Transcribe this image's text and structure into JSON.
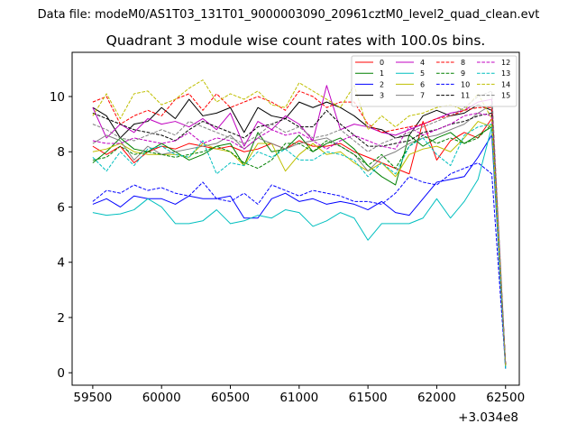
{
  "chart_data": {
    "type": "line",
    "suptitle": "Data file: modeM0/AS1T03_131T01_9000003090_20961cztM0_level2_quad_clean.evt",
    "title": "Quadrant 3 module wise count rates with 100.0s bins.",
    "xlabel": "",
    "ylabel": "",
    "x_offset_label": "+3.034e8",
    "xlim": [
      59350,
      62600
    ],
    "ylim": [
      -0.45,
      11.6
    ],
    "x_ticks": [
      59500,
      60000,
      60500,
      61000,
      61500,
      62000,
      62500
    ],
    "y_ticks": [
      0,
      2,
      4,
      6,
      8,
      10
    ],
    "x": [
      59500,
      59600,
      59700,
      59800,
      59900,
      60000,
      60100,
      60200,
      60300,
      60400,
      60500,
      60600,
      60700,
      60800,
      60900,
      61000,
      61100,
      61200,
      61300,
      61400,
      61500,
      61600,
      61700,
      61800,
      61900,
      62000,
      62100,
      62200,
      62300,
      62400,
      62500
    ],
    "legend_loc": "upper right",
    "series": [
      {
        "name": "0",
        "color": "#ff0000",
        "dash": "solid",
        "values": [
          8.2,
          7.9,
          8.2,
          7.6,
          8.0,
          8.2,
          8.1,
          8.3,
          8.2,
          8.1,
          8.2,
          8.0,
          8.1,
          8.3,
          8.1,
          8.4,
          8.2,
          8.2,
          8.3,
          8.0,
          7.8,
          7.6,
          7.4,
          7.2,
          9.1,
          7.7,
          8.4,
          8.7,
          8.5,
          9.2,
          0.3
        ]
      },
      {
        "name": "1",
        "color": "#008000",
        "dash": "solid",
        "values": [
          7.6,
          8.0,
          8.5,
          8.1,
          8.0,
          8.3,
          8.0,
          7.7,
          7.9,
          8.2,
          8.3,
          7.5,
          8.7,
          8.0,
          8.1,
          8.6,
          8.0,
          8.3,
          8.5,
          8.1,
          7.5,
          7.1,
          6.8,
          8.6,
          8.2,
          8.5,
          8.7,
          8.3,
          8.6,
          8.9,
          0.25
        ]
      },
      {
        "name": "2",
        "color": "#0000ff",
        "dash": "solid",
        "values": [
          6.1,
          6.3,
          6.0,
          6.4,
          6.3,
          6.3,
          6.1,
          6.4,
          6.3,
          6.3,
          6.4,
          5.6,
          5.6,
          6.3,
          6.5,
          6.2,
          6.3,
          6.1,
          6.2,
          6.1,
          5.9,
          6.2,
          5.8,
          5.7,
          6.3,
          6.9,
          7.0,
          7.1,
          7.8,
          8.6,
          0.15
        ]
      },
      {
        "name": "3",
        "color": "#000000",
        "dash": "solid",
        "values": [
          9.6,
          9.3,
          8.5,
          9.0,
          9.1,
          9.6,
          9.2,
          9.9,
          9.3,
          9.4,
          9.6,
          8.7,
          9.6,
          9.3,
          9.2,
          9.8,
          9.6,
          9.8,
          9.6,
          9.3,
          8.9,
          8.8,
          8.5,
          8.6,
          9.3,
          9.5,
          9.3,
          9.4,
          9.7,
          9.5,
          0.3
        ]
      },
      {
        "name": "4",
        "color": "#c000c0",
        "dash": "solid",
        "values": [
          9.6,
          8.5,
          9.0,
          8.7,
          9.2,
          9.0,
          9.1,
          8.9,
          9.2,
          8.8,
          9.4,
          8.2,
          9.1,
          8.8,
          9.3,
          9.0,
          8.4,
          10.4,
          8.8,
          9.0,
          8.9,
          8.7,
          8.6,
          8.8,
          9.0,
          9.2,
          9.4,
          9.5,
          9.8,
          9.9,
          0.3
        ]
      },
      {
        "name": "5",
        "color": "#00bfbf",
        "dash": "solid",
        "values": [
          5.8,
          5.7,
          5.75,
          5.9,
          6.3,
          6.0,
          5.4,
          5.4,
          5.5,
          5.9,
          5.4,
          5.5,
          5.7,
          5.6,
          5.9,
          5.8,
          5.3,
          5.5,
          5.8,
          5.6,
          4.8,
          5.4,
          5.4,
          5.4,
          5.6,
          6.3,
          5.6,
          6.2,
          7.0,
          8.9,
          0.15
        ]
      },
      {
        "name": "6",
        "color": "#bfbf00",
        "dash": "solid",
        "values": [
          8.0,
          8.1,
          8.3,
          8.0,
          7.9,
          7.9,
          7.9,
          7.8,
          8.3,
          8.1,
          8.0,
          7.5,
          8.3,
          8.3,
          7.3,
          7.9,
          8.3,
          7.9,
          8.0,
          7.6,
          7.3,
          7.6,
          7.1,
          7.9,
          8.1,
          8.2,
          8.0,
          8.5,
          9.1,
          8.9,
          0.25
        ]
      },
      {
        "name": "7",
        "color": "#808080",
        "dash": "solid",
        "values": [
          8.3,
          8.6,
          8.4,
          7.7,
          8.2,
          7.9,
          8.0,
          8.1,
          8.2,
          8.3,
          8.6,
          8.1,
          8.5,
          8.3,
          8.1,
          8.3,
          8.4,
          8.5,
          8.2,
          7.9,
          7.3,
          7.8,
          8.0,
          8.3,
          8.5,
          8.6,
          8.8,
          9.0,
          9.4,
          9.7,
          0.3
        ]
      },
      {
        "name": "8",
        "color": "#ff0000",
        "dash": "dashed",
        "values": [
          9.8,
          10.0,
          9.0,
          9.3,
          9.5,
          9.3,
          9.9,
          10.1,
          9.5,
          10.1,
          9.6,
          9.8,
          10.0,
          9.8,
          9.5,
          10.2,
          10.0,
          9.6,
          9.8,
          9.8,
          9.0,
          8.7,
          8.8,
          8.9,
          9.0,
          9.2,
          9.3,
          9.5,
          9.6,
          9.6,
          0.3
        ]
      },
      {
        "name": "9",
        "color": "#008000",
        "dash": "dashed",
        "values": [
          7.7,
          7.8,
          8.2,
          7.9,
          8.0,
          7.9,
          7.8,
          7.9,
          8.0,
          8.2,
          8.0,
          7.6,
          7.4,
          7.7,
          8.3,
          8.3,
          8.0,
          8.4,
          8.2,
          7.9,
          7.5,
          7.9,
          7.4,
          8.2,
          8.6,
          8.3,
          8.5,
          8.3,
          8.5,
          9.0,
          0.25
        ]
      },
      {
        "name": "10",
        "color": "#0000ff",
        "dash": "dashed",
        "values": [
          6.2,
          6.6,
          6.5,
          6.8,
          6.6,
          6.7,
          6.5,
          6.4,
          6.9,
          6.3,
          6.2,
          6.5,
          6.1,
          6.8,
          6.6,
          6.4,
          6.6,
          6.5,
          6.4,
          6.2,
          6.2,
          6.1,
          6.5,
          7.1,
          6.9,
          6.8,
          7.2,
          7.4,
          7.6,
          7.2,
          0.2
        ]
      },
      {
        "name": "11",
        "color": "#000000",
        "dash": "dashed",
        "values": [
          9.4,
          9.2,
          9.0,
          8.8,
          8.7,
          8.6,
          8.4,
          8.8,
          9.1,
          8.9,
          8.7,
          8.5,
          8.9,
          9.0,
          9.2,
          8.9,
          8.9,
          9.5,
          9.0,
          8.6,
          8.2,
          8.2,
          8.3,
          8.4,
          8.7,
          8.8,
          9.0,
          9.1,
          9.3,
          9.4,
          0.3
        ]
      },
      {
        "name": "12",
        "color": "#c000c0",
        "dash": "dashed",
        "values": [
          8.4,
          8.3,
          8.3,
          8.5,
          8.4,
          8.3,
          8.4,
          8.7,
          8.3,
          8.5,
          8.4,
          8.1,
          8.5,
          8.8,
          8.6,
          8.7,
          8.4,
          8.1,
          8.4,
          8.6,
          8.4,
          8.2,
          8.1,
          8.9,
          8.6,
          8.8,
          9.0,
          9.3,
          9.4,
          9.3,
          0.3
        ]
      },
      {
        "name": "13",
        "color": "#00bfbf",
        "dash": "dashed",
        "values": [
          7.8,
          7.3,
          8.0,
          7.5,
          8.1,
          8.2,
          7.9,
          7.8,
          8.4,
          7.2,
          7.6,
          7.5,
          8.0,
          7.8,
          8.1,
          7.7,
          7.7,
          8.0,
          7.9,
          7.7,
          7.1,
          7.6,
          7.2,
          8.2,
          8.5,
          7.9,
          7.5,
          8.6,
          8.9,
          9.0,
          0.2
        ]
      },
      {
        "name": "14",
        "color": "#bfbf00",
        "dash": "dashed",
        "values": [
          9.3,
          10.1,
          9.2,
          10.1,
          10.2,
          9.7,
          9.9,
          10.3,
          10.6,
          9.8,
          10.1,
          9.9,
          10.2,
          9.7,
          9.6,
          10.5,
          10.2,
          9.9,
          9.6,
          10.4,
          8.8,
          9.3,
          8.9,
          9.3,
          9.4,
          9.6,
          9.7,
          9.5,
          10.1,
          9.2,
          0.25
        ]
      },
      {
        "name": "15",
        "color": "#808080",
        "dash": "dashed",
        "values": [
          9.0,
          8.8,
          8.5,
          8.4,
          8.6,
          8.8,
          8.6,
          9.1,
          8.9,
          8.7,
          8.5,
          8.3,
          8.6,
          9.0,
          8.7,
          8.9,
          8.5,
          8.6,
          8.8,
          8.4,
          8.0,
          8.3,
          8.5,
          8.7,
          8.9,
          9.1,
          9.3,
          9.6,
          10.0,
          10.2,
          0.3
        ]
      }
    ]
  }
}
